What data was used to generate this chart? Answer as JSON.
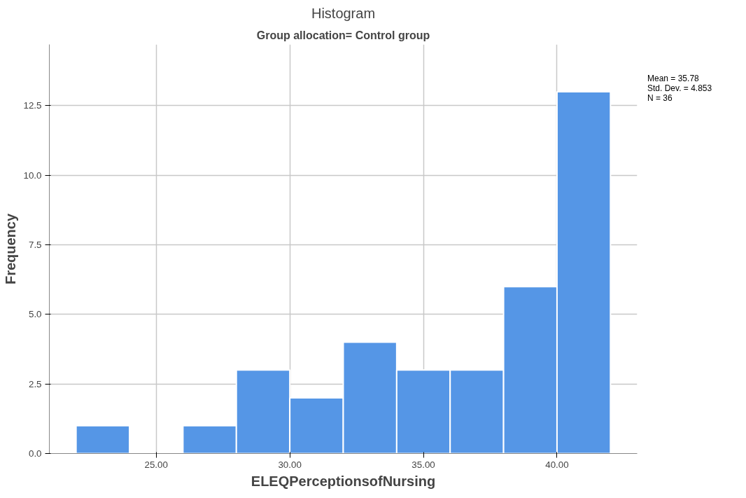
{
  "chart_data": {
    "type": "histogram",
    "title": "Histogram",
    "subtitle": "Group allocation= Control group",
    "xlabel": "ELEQPerceptionsofNursing",
    "ylabel": "Frequency",
    "bins": [
      22,
      24,
      26,
      28,
      30,
      32,
      34,
      36,
      38,
      40,
      42
    ],
    "values": [
      1,
      0,
      1,
      3,
      2,
      4,
      3,
      3,
      6,
      13
    ],
    "color": "#5596e6",
    "xlim": [
      21,
      43
    ],
    "ylim": [
      0,
      14.7
    ],
    "xticks": [
      {
        "value": 25,
        "label": "25.00"
      },
      {
        "value": 30,
        "label": "30.00"
      },
      {
        "value": 35,
        "label": "35.00"
      },
      {
        "value": 40,
        "label": "40.00"
      }
    ],
    "yticks": [
      {
        "value": 0,
        "label": "0.0"
      },
      {
        "value": 2.5,
        "label": "2.5"
      },
      {
        "value": 5,
        "label": "5.0"
      },
      {
        "value": 7.5,
        "label": "7.5"
      },
      {
        "value": 10,
        "label": "10.0"
      },
      {
        "value": 12.5,
        "label": "12.5"
      }
    ],
    "grid": true,
    "annotations": [
      "Mean = 35.78",
      "Std. Dev. = 4.853",
      "N = 36"
    ]
  }
}
